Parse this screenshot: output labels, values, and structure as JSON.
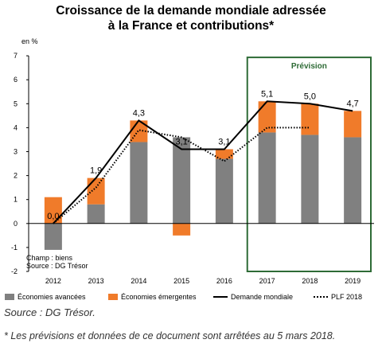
{
  "title_line1": "Croissance de la demande mondiale adressée",
  "title_line2": "à la France et contributions*",
  "source": "Source : DG Trésor.",
  "footnote": "* Les prévisions et données de ce document sont arrêtées au 5 mars 2018.",
  "colors": {
    "avancees": "#808080",
    "emergentes": "#f07b2a",
    "demande": "#000000",
    "plf": "#000000",
    "prevision_box": "#2e6b36"
  },
  "chart_data": {
    "type": "bar",
    "stacked": true,
    "unit_label": "en %",
    "categories": [
      "2012",
      "2013",
      "2014",
      "2015",
      "2016",
      "2017",
      "2018",
      "2019"
    ],
    "ylim": [
      -2,
      7
    ],
    "yticks": [
      "-2",
      "-1",
      "0",
      "1",
      "2",
      "3",
      "4",
      "5",
      "6",
      "7"
    ],
    "grid": false,
    "legend_placement": "bottom",
    "series": [
      {
        "name": "Économies avancées",
        "kind": "bar",
        "values": [
          -1.1,
          0.8,
          3.4,
          3.6,
          2.7,
          3.8,
          3.7,
          3.6
        ]
      },
      {
        "name": "Économies émergentes",
        "kind": "bar",
        "values": [
          1.1,
          1.1,
          0.9,
          -0.5,
          0.4,
          1.3,
          1.3,
          1.1
        ]
      },
      {
        "name": "Demande mondiale",
        "kind": "line",
        "values": [
          0.0,
          1.9,
          4.3,
          3.1,
          3.1,
          5.1,
          5.0,
          4.7
        ]
      },
      {
        "name": "PLF 2018",
        "kind": "dotted-line",
        "values": [
          0.0,
          1.5,
          3.9,
          3.6,
          2.6,
          4.0,
          4.0,
          null
        ]
      }
    ],
    "data_labels": [
      "0,0",
      "1,9",
      "4,3",
      "3,1",
      "3,1",
      "5,1",
      "5,0",
      "4,7"
    ],
    "annotations": {
      "prevision": "Prévision",
      "prevision_from": "2017",
      "prevision_to": "2019",
      "champ": "Champ : biens",
      "source_inner": "Source : DG Trésor"
    }
  }
}
